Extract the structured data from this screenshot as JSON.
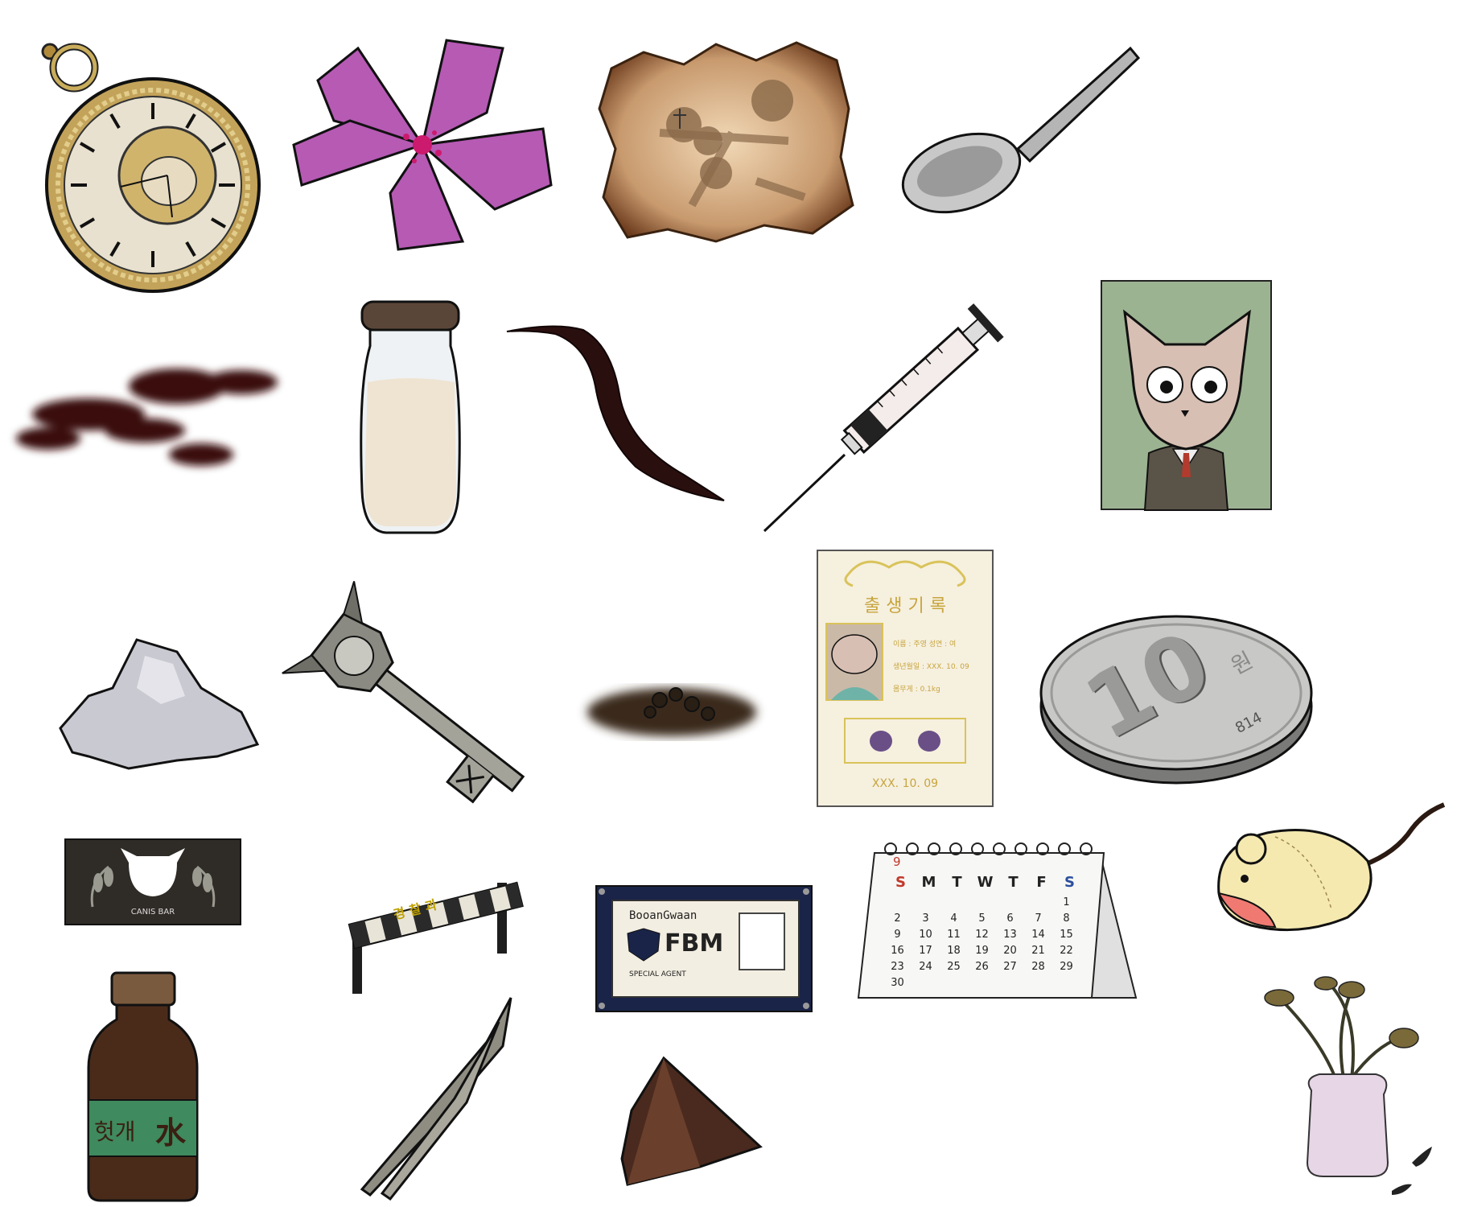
{
  "inventory": {
    "items": [
      {
        "name": "pocket-watch",
        "icon": "pocket-watch-icon"
      },
      {
        "name": "pink-flower",
        "icon": "flower-icon"
      },
      {
        "name": "burnt-map",
        "icon": "map-icon"
      },
      {
        "name": "spoon",
        "icon": "spoon-icon"
      },
      {
        "name": "blood-stain",
        "icon": "stain-icon"
      },
      {
        "name": "milk-jar",
        "icon": "jar-icon"
      },
      {
        "name": "hair-strand",
        "icon": "hair-icon"
      },
      {
        "name": "syringe",
        "icon": "syringe-icon"
      },
      {
        "name": "cat-portrait",
        "icon": "portrait-icon"
      },
      {
        "name": "white-powder",
        "icon": "powder-icon"
      },
      {
        "name": "ornate-key",
        "icon": "key-icon"
      },
      {
        "name": "dirt-pile",
        "icon": "dirt-icon"
      },
      {
        "name": "birth-certificate",
        "icon": "certificate-icon"
      },
      {
        "name": "ten-won-coin",
        "icon": "coin-icon"
      },
      {
        "name": "bar-sign",
        "icon": "sign-icon"
      },
      {
        "name": "police-barrier",
        "icon": "barrier-icon"
      },
      {
        "name": "fbm-badge",
        "icon": "badge-icon"
      },
      {
        "name": "calendar",
        "icon": "calendar-icon"
      },
      {
        "name": "toy-mouse",
        "icon": "mouse-icon"
      },
      {
        "name": "brown-bottle",
        "icon": "bottle-icon"
      },
      {
        "name": "tweezers",
        "icon": "tweezers-icon"
      },
      {
        "name": "rock-shard",
        "icon": "shard-icon"
      },
      {
        "name": "dead-flowers-vase",
        "icon": "vase-icon"
      }
    ]
  },
  "colors": {
    "flower": "#b65ab4",
    "parchment": "#c89a6e",
    "portrait_bg": "#9cb392",
    "badge_frame": "#1a2448",
    "barrier_stripe": "#2a2a2a",
    "bottle_label": "#3f8a5e",
    "sunday": "#c0392b",
    "saturday": "#2c4f9e",
    "gold_line": "#d9c35a"
  },
  "bar_sign": {
    "text": "CANIS BAR"
  },
  "barrier": {
    "text": "경 찰 과"
  },
  "badge": {
    "org": "BooanGwaan",
    "title": "FBM",
    "subtitle": "SPECIAL AGENT"
  },
  "certificate": {
    "title": "출 생 기 록",
    "row1": "이름 : 주영 성연 : 여",
    "row2": "생년월일 : XXX. 10. 09",
    "row3": "몸무게 : 0.1kg",
    "date": "XXX. 10. 09"
  },
  "coin": {
    "value": "10",
    "unit": "원",
    "year": "814"
  },
  "calendar": {
    "month": "9",
    "weekdays": [
      "S",
      "M",
      "T",
      "W",
      "T",
      "F",
      "S"
    ],
    "weeks": [
      [
        "",
        "",
        "",
        "",
        "",
        "",
        "1"
      ],
      [
        "2",
        "3",
        "4",
        "5",
        "6",
        "7",
        "8"
      ],
      [
        "9",
        "10",
        "11",
        "12",
        "13",
        "14",
        "15"
      ],
      [
        "16",
        "17",
        "18",
        "19",
        "20",
        "21",
        "22"
      ],
      [
        "23",
        "24",
        "25",
        "26",
        "27",
        "28",
        "29"
      ],
      [
        "30",
        "",
        "",
        "",
        "",
        "",
        ""
      ]
    ]
  },
  "bottle": {
    "label": "헛개",
    "label_kanji": "水"
  }
}
